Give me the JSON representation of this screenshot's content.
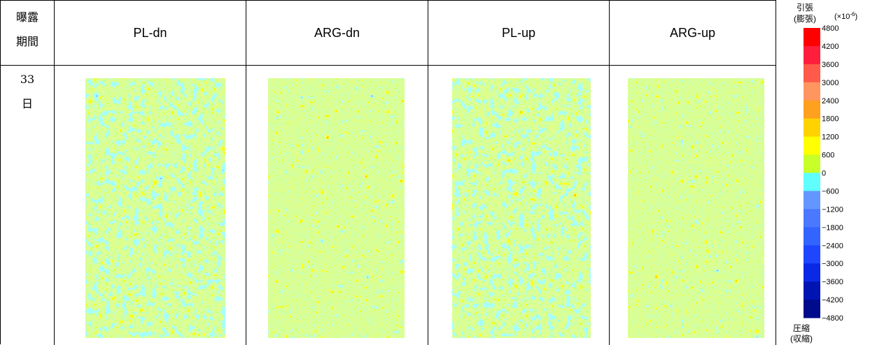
{
  "table": {
    "header": {
      "period": [
        "曝露",
        "期間"
      ],
      "columns": [
        "PL-dn",
        "ARG-dn",
        "PL-up",
        "ARG-up"
      ]
    },
    "rows": [
      {
        "period": [
          "33",
          "日"
        ]
      }
    ]
  },
  "scale": {
    "top": [
      "引張",
      "(膨張)"
    ],
    "unit": {
      "base": "(×10",
      "exponent": "-6",
      "close": ")"
    },
    "ticks": [
      "4800",
      "4200",
      "3600",
      "3000",
      "2400",
      "1800",
      "1200",
      "600",
      "0",
      "−600",
      "−1200",
      "−1800",
      "−2400",
      "−3000",
      "−3600",
      "−4200",
      "−4800"
    ],
    "colors": [
      "#ff0000",
      "#ff1e3c",
      "#ff5a4a",
      "#ff9660",
      "#ffa01e",
      "#ffd200",
      "#ffff00",
      "#c8ff28",
      "#60ffff",
      "#6496ff",
      "#4a78ff",
      "#3264ff",
      "#1e46ff",
      "#0a28e6",
      "#0014b4",
      "#000a8c"
    ],
    "bottom": [
      "圧縮",
      "(収縮)"
    ]
  }
}
